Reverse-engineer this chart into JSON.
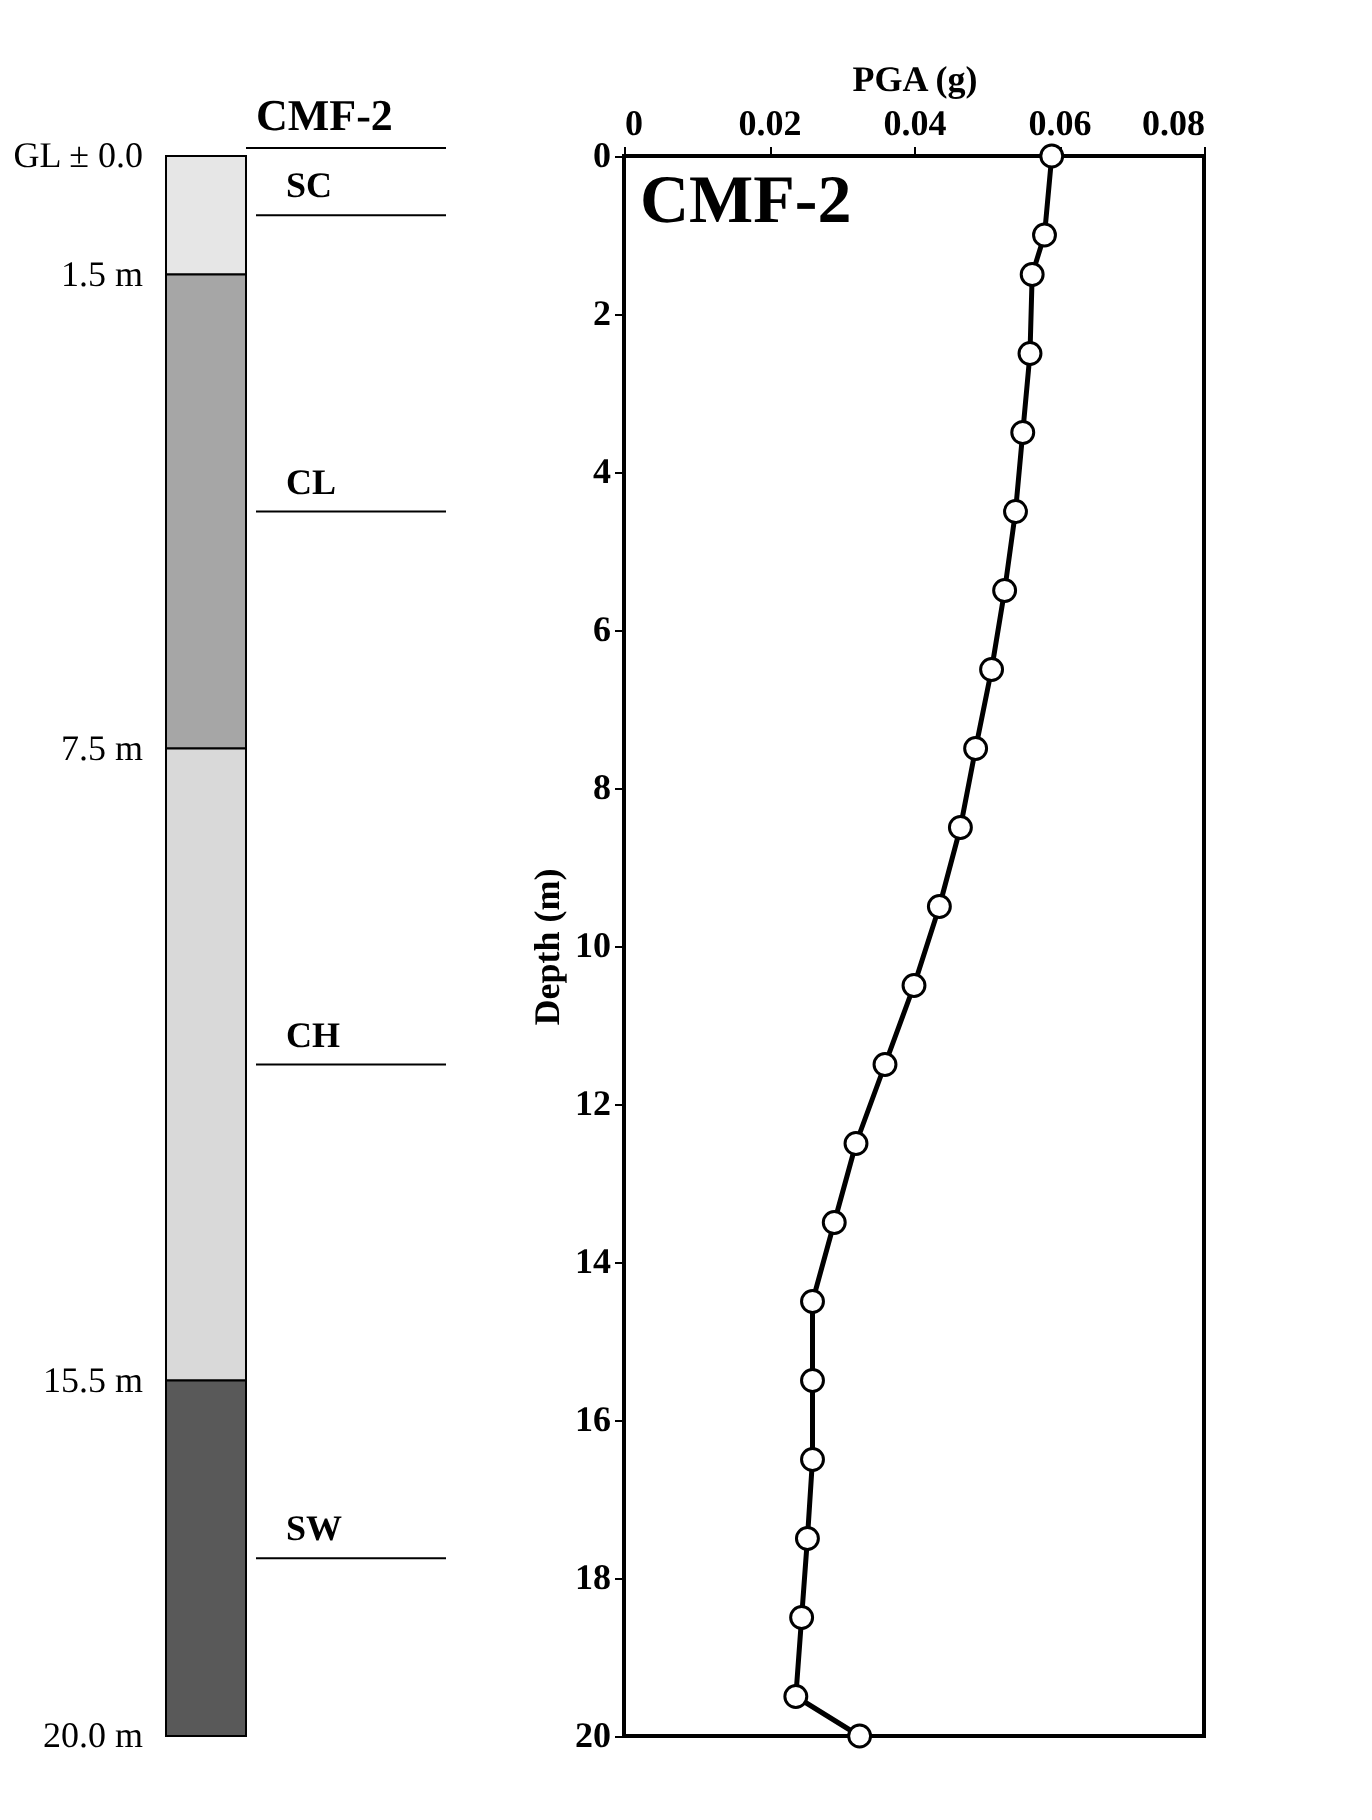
{
  "chart_data": [
    {
      "type": "bar",
      "title": "CMF-2",
      "stacked": true,
      "categories": [
        null
      ],
      "ylim": [
        20,
        0
      ],
      "yticks": [
        {
          "value": 0,
          "label": "GL ± 0.0"
        },
        {
          "value": 1.5,
          "label": "1.5 m"
        },
        {
          "value": 7.5,
          "label": "7.5 m"
        },
        {
          "value": 15.5,
          "label": "15.5 m"
        },
        {
          "value": 20,
          "label": "20.0 m"
        }
      ],
      "tick_labels": "y",
      "legend": false,
      "series": [
        {
          "name": "SC",
          "color": "#e6e6e6",
          "values": [
            1.5
          ]
        },
        {
          "name": "CL",
          "color": "#a6a6a6",
          "values": [
            6
          ]
        },
        {
          "name": "CH",
          "color": "#d9d9d9",
          "values": [
            8
          ]
        },
        {
          "name": "SW",
          "color": "#595959",
          "values": [
            4.5
          ]
        }
      ]
    },
    {
      "type": "line",
      "xlabel": "PGA (g)",
      "ylabel": "Depth (m)",
      "xlim": [
        0,
        0.08
      ],
      "xticks": [
        0,
        0.02,
        0.04,
        0.06,
        0.08
      ],
      "ylim": [
        20,
        0
      ],
      "yticks": [
        0,
        2,
        4,
        6,
        8,
        10,
        12,
        14,
        16,
        18,
        20
      ],
      "marker": "circle",
      "line_style": "solid",
      "grid": false,
      "legend": false,
      "annotations": [
        "CMF-2"
      ],
      "series": [
        {
          "color": "#000000",
          "x": [
            0.059,
            0.058,
            0.0563,
            0.056,
            0.055,
            0.054,
            0.0525,
            0.0507,
            0.0485,
            0.0464,
            0.0435,
            0.04,
            0.036,
            0.032,
            0.029,
            0.026,
            0.026,
            0.026,
            0.0253,
            0.0245,
            0.0237,
            0.0325
          ],
          "values": [
            0,
            1,
            1.5,
            2.5,
            3.5,
            4.5,
            5.5,
            6.5,
            7.5,
            8.5,
            9.5,
            10.5,
            11.5,
            12.5,
            13.5,
            14.5,
            15.5,
            16.5,
            17.5,
            18.5,
            19.5,
            20
          ]
        }
      ]
    }
  ]
}
